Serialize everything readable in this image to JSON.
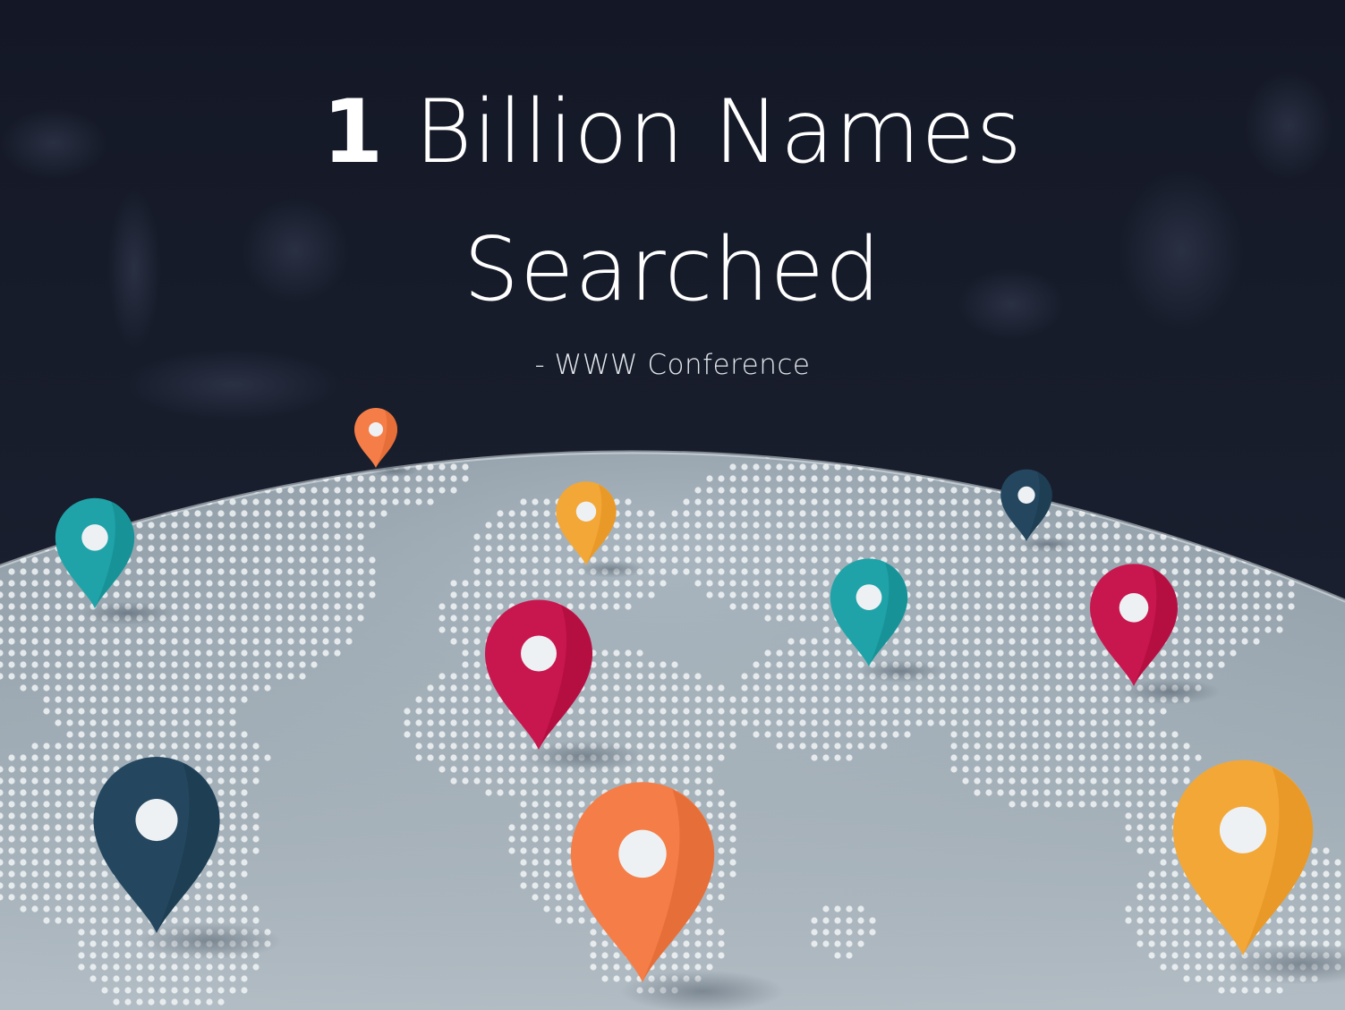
{
  "headline": {
    "number": "1",
    "line1_rest": "Billion Names",
    "line2": "Searched",
    "attribution": "- WWW Conference"
  },
  "colors": {
    "background_top": "#141826",
    "background_bottom": "#1d2434",
    "globe_light": "#b4c0c9",
    "globe_mid": "#9eadb8",
    "globe_rim": "#dfe5ea",
    "map_dots": "#f1f4f6",
    "text": "#ffffff"
  },
  "pins": [
    {
      "id": "pin-north-america-teal",
      "color": "#1fa3a8",
      "shade": "#148c91"
    },
    {
      "id": "pin-greenland-orange",
      "color": "#f57d47",
      "shade": "#e06832"
    },
    {
      "id": "pin-europe-yellow",
      "color": "#f3a737",
      "shade": "#e39322"
    },
    {
      "id": "pin-russia-navy",
      "color": "#24475f",
      "shade": "#1b3a4f"
    },
    {
      "id": "pin-asia-teal",
      "color": "#1fa3a8",
      "shade": "#148c91"
    },
    {
      "id": "pin-east-asia-crimson",
      "color": "#c8174e",
      "shade": "#ad0d3d"
    },
    {
      "id": "pin-africa-crimson",
      "color": "#c8174e",
      "shade": "#ad0d3d"
    },
    {
      "id": "pin-south-america-navy",
      "color": "#24475f",
      "shade": "#1b3a4f"
    },
    {
      "id": "pin-south-africa-orange",
      "color": "#f57d47",
      "shade": "#e06832"
    },
    {
      "id": "pin-australia-yellow",
      "color": "#f3a737",
      "shade": "#e39322"
    }
  ]
}
